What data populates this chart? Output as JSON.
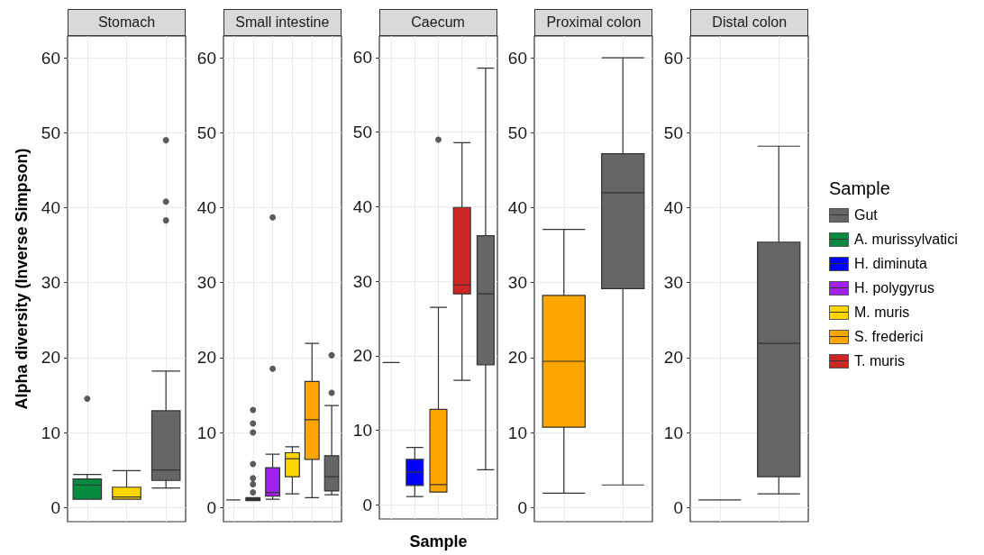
{
  "chart_data": [
    {
      "type": "box",
      "title": "Stomach",
      "ylabel": "Alpha diversity (Inverse Simpson)",
      "categories": [
        null,
        null,
        null
      ],
      "colors": [
        "#078b3e",
        "#ffd700",
        "#666666"
      ],
      "boxes": [
        {
          "low": 1.1,
          "q1": 1.1,
          "median": 3.0,
          "q3": 3.8,
          "high": 4.4,
          "outliers": [
            14.5
          ]
        },
        {
          "low": 1.1,
          "q1": 1.1,
          "median": 1.4,
          "q3": 2.7,
          "high": 4.9
        },
        {
          "low": 2.6,
          "q1": 3.6,
          "median": 5.0,
          "q3": 12.9,
          "high": 18.2,
          "outliers": [
            49.0,
            40.8,
            38.3
          ]
        }
      ],
      "ylim": [
        -1.9,
        62.9
      ],
      "yticks": [
        0,
        10,
        20,
        30,
        40,
        50,
        60
      ],
      "grid": true,
      "tick_labels": "y"
    },
    {
      "type": "box",
      "title": "Small intestine",
      "categories": [
        null,
        null,
        null,
        null,
        null,
        null
      ],
      "colors": [
        "#333333",
        "#333333",
        "#a020f0",
        "#ffd700",
        "#ffa500",
        "#666666"
      ],
      "boxes": [
        {
          "low": 1.0,
          "q1": 1.0,
          "median": 1.0,
          "q3": 1.0,
          "high": 1.0
        },
        {
          "low": 0.9,
          "q1": 0.9,
          "median": 1.1,
          "q3": 1.3,
          "high": 1.3,
          "outliers": [
            13.0,
            11.2,
            10.0,
            5.8,
            3.9,
            3.1,
            2.0
          ]
        },
        {
          "low": 1.1,
          "q1": 1.5,
          "median": 2.0,
          "q3": 5.3,
          "high": 7.1,
          "outliers": [
            18.5,
            38.7
          ]
        },
        {
          "low": 1.8,
          "q1": 4.1,
          "median": 6.5,
          "q3": 7.3,
          "high": 8.1
        },
        {
          "low": 1.3,
          "q1": 6.4,
          "median": 11.7,
          "q3": 16.8,
          "high": 21.9
        },
        {
          "low": 1.7,
          "q1": 2.2,
          "median": 4.1,
          "q3": 6.9,
          "high": 13.6,
          "outliers": [
            20.3,
            15.3
          ]
        }
      ],
      "ylim": [
        -1.9,
        62.9
      ],
      "yticks": [
        0,
        10,
        20,
        30,
        40,
        50,
        60
      ],
      "grid": true,
      "tick_labels": "y"
    },
    {
      "type": "box",
      "title": "Caecum",
      "xlabel": "Sample",
      "categories": [
        null,
        null,
        null,
        null,
        null
      ],
      "colors": [
        "#333333",
        "#0000ff",
        "#ffa500",
        "#cd2626",
        "#666666"
      ],
      "boxes": [
        {
          "low": 19.1,
          "q1": 19.1,
          "median": 19.1,
          "q3": 19.1,
          "high": 19.1
        },
        {
          "low": 1.1,
          "q1": 2.6,
          "median": 4.4,
          "q3": 6.1,
          "high": 7.7
        },
        {
          "low": 1.7,
          "q1": 1.7,
          "median": 2.7,
          "q3": 12.8,
          "high": 26.5,
          "outliers": [
            49.0
          ]
        },
        {
          "low": 16.7,
          "q1": 28.3,
          "median": 29.5,
          "q3": 39.9,
          "high": 48.6
        },
        {
          "low": 4.7,
          "q1": 18.8,
          "median": 28.3,
          "q3": 36.1,
          "high": 58.6
        }
      ],
      "ylim": [
        -1.9,
        62.9
      ],
      "yticks": [
        0,
        10,
        20,
        30,
        40,
        50,
        60
      ],
      "grid": true,
      "tick_labels": "y"
    },
    {
      "type": "box",
      "title": "Proximal colon",
      "categories": [
        null,
        null
      ],
      "colors": [
        "#ffa500",
        "#666666"
      ],
      "boxes": [
        {
          "low": 1.9,
          "q1": 10.7,
          "median": 19.5,
          "q3": 28.3,
          "high": 37.1
        },
        {
          "low": 3.0,
          "q1": 29.2,
          "median": 42.0,
          "q3": 47.2,
          "high": 60.0
        }
      ],
      "ylim": [
        -1.9,
        62.9
      ],
      "yticks": [
        0,
        10,
        20,
        30,
        40,
        50,
        60
      ],
      "grid": true,
      "tick_labels": "y"
    },
    {
      "type": "box",
      "title": "Distal colon",
      "categories": [
        null,
        null
      ],
      "colors": [
        "#333333",
        "#666666"
      ],
      "boxes": [
        {
          "low": 1.0,
          "q1": 1.0,
          "median": 1.0,
          "q3": 1.0,
          "high": 1.0
        },
        {
          "low": 1.8,
          "q1": 4.1,
          "median": 21.9,
          "q3": 35.4,
          "high": 48.2
        }
      ],
      "ylim": [
        -1.9,
        62.9
      ],
      "yticks": [
        0,
        10,
        20,
        30,
        40,
        50,
        60
      ],
      "grid": true,
      "tick_labels": "y"
    },
    {
      "type": "other",
      "legend": "right",
      "legend_title": "Sample",
      "series": [
        {
          "name": "Gut",
          "color": "#666666"
        },
        {
          "name": "A. murissylvatici",
          "color": "#078b3e"
        },
        {
          "name": "H. diminuta",
          "color": "#0000ff"
        },
        {
          "name": "H. polygyrus",
          "color": "#a020f0"
        },
        {
          "name": "M. muris",
          "color": "#ffd700"
        },
        {
          "name": "S. frederici",
          "color": "#ffa500"
        },
        {
          "name": "T. muris",
          "color": "#cd2626"
        }
      ]
    }
  ]
}
